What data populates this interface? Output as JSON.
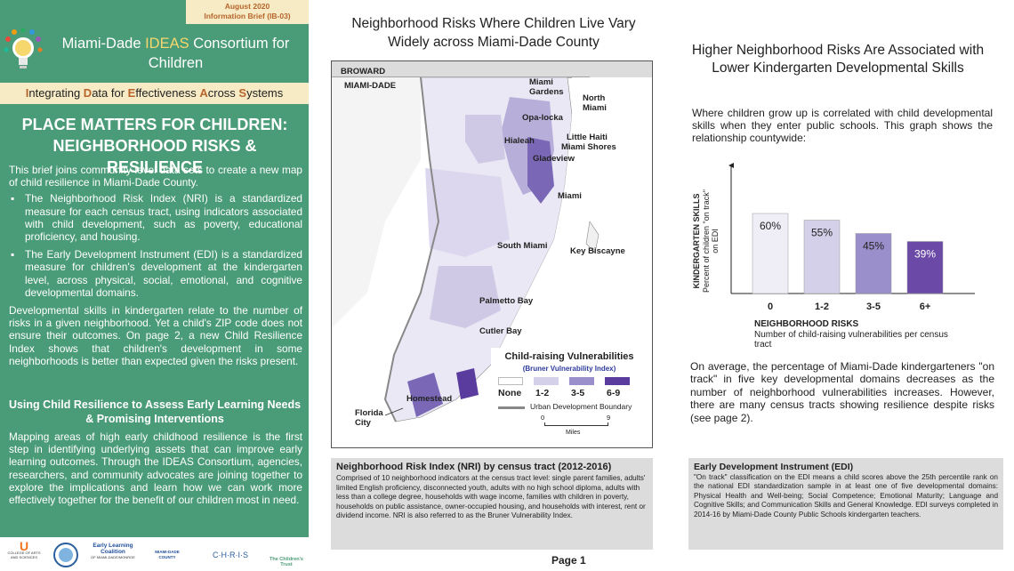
{
  "brief": {
    "date": "August 2020",
    "label": "Information Brief (IB-03)"
  },
  "header": {
    "consortium_pre": "Miami-Dade ",
    "consortium_ideas": "IDEAS",
    "consortium_post": " Consortium for Children",
    "ideas_expansion": [
      {
        "initial": "I",
        "rest": "ntegrating "
      },
      {
        "initial": "D",
        "rest": "ata for "
      },
      {
        "initial": "E",
        "rest": "ffectiveness "
      },
      {
        "initial": "A",
        "rest": "cross "
      },
      {
        "initial": "S",
        "rest": "ystems"
      }
    ]
  },
  "left": {
    "title": "PLACE MATTERS FOR CHILDREN: NEIGHBORHOOD RISKS & RESILIENCE",
    "intro": "This brief joins community-level data sets to create a new map of child resilience in Miami-Dade County.",
    "bullets": [
      "The Neighborhood Risk Index (NRI) is a standardized measure for each census tract, using indicators associated with child development, such as poverty, educational proficiency, and housing.",
      "The Early Development Instrument (EDI) is a standardized measure for children's development at the kindergarten level, across physical, social, emotional, and cognitive developmental domains."
    ],
    "para2": "Developmental skills in kindergarten relate to the number of risks in a given neighborhood. Yet a child's ZIP code does not ensure their outcomes. On page 2, a new Child Resilience Index shows that children's development in some neighborhoods is better than expected given the risks present.",
    "subhead": "Using Child Resilience to Assess Early Learning Needs & Promising Interventions",
    "para3": "Mapping areas of high early childhood resilience is the first step in identifying underlying assets that can improve early learning outcomes. Through the IDEAS Consortium, agencies, researchers, and community advocates are joining together to explore the implications and learn how we can work more effectively together for the benefit of our children most in need."
  },
  "logos": [
    {
      "name": "U",
      "caption": "COLLEGE OF ARTS AND SCIENCES"
    },
    {
      "name": "seal",
      "caption": ""
    },
    {
      "name": "Early Learning Coalition",
      "caption": "OF MIAMI-DADE/MONROE"
    },
    {
      "name": "MIAMI-DADE COUNTY",
      "caption": ""
    },
    {
      "name": "C·H·R·I·S",
      "caption": ""
    },
    {
      "name": "The Children's Trust",
      "caption": ""
    }
  ],
  "map": {
    "title": "Neighborhood Risks Where Children Live Vary Widely across Miami-Dade County",
    "county_labels": [
      "BROWARD",
      "MIAMI-DADE"
    ],
    "places": [
      "Miami Gardens",
      "North Miami",
      "Opa-locka",
      "Hialeah",
      "Little Haiti",
      "Miami Shores",
      "Gladeview",
      "Miami",
      "South Miami",
      "Key Biscayne",
      "Palmetto Bay",
      "Cutler Bay",
      "Homestead",
      "Florida City"
    ],
    "legend_title": "Child-raising Vulnerabilities",
    "legend_subtitle": "(Bruner Vulnerability Index)",
    "legend_items": [
      {
        "label": "None",
        "color": "#ffffff"
      },
      {
        "label": "1-2",
        "color": "#d4d0ea"
      },
      {
        "label": "3-5",
        "color": "#9b8fcb"
      },
      {
        "label": "6-9",
        "color": "#5a3c9e"
      }
    ],
    "boundary_label": "Urban Development Boundary",
    "scale_min": "0",
    "scale_max": "9",
    "scale_unit": "Miles"
  },
  "nri": {
    "title": "Neighborhood Risk Index (NRI) by census tract (2012-2016)",
    "text": "Comprised of 10 neighborhood indicators at the census tract level: single parent families, adults' limited English proficiency, disconnected youth, adults with no high school diploma, adults with less than a college degree, households with wage income, families with children in poverty, households on public assistance, owner-occupied housing, and households with interest, rent or dividend income. NRI is also referred to as the Bruner Vulnerability Index."
  },
  "page": {
    "label": "Page 1"
  },
  "right": {
    "title": "Higher Neighborhood Risks Are Associated with Lower Kindergarten Developmental Skills",
    "intro": "Where children grow up is correlated with child developmental skills when they enter public schools. This graph shows the relationship countywide:",
    "body": "On average, the percentage of Miami-Dade kindergarteners \"on track\" in five key developmental domains decreases as the number of neighborhood vulnerabilities increases. However, there are many census tracts showing resilience despite risks (see page 2)."
  },
  "chart_data": {
    "type": "bar",
    "categories": [
      "0",
      "1-2",
      "3-5",
      "6+"
    ],
    "values": [
      60,
      55,
      45,
      39
    ],
    "data_labels": [
      "60%",
      "55%",
      "45%",
      "39%"
    ],
    "colors": [
      "#efeef6",
      "#d4d0ea",
      "#9b8fcb",
      "#6a4aa6"
    ],
    "ylabel_title": "KINDERGARTEN SKILLS",
    "ylabel_sub": "Percent of children \"on track\" on EDI",
    "xlabel_title": "NEIGHBORHOOD RISKS",
    "xlabel_sub": "Number of child-raising vulnerabilities per census tract",
    "ylim": [
      0,
      100
    ],
    "grid": false
  },
  "edi": {
    "title": "Early Development Instrument (EDI)",
    "text": "\"On track\" classification on the EDI means a child scores above the 25th percentile rank on the national EDI standardization sample in at least one of five developmental domains: Physical Health and Well-being; Social Competence; Emotional Maturity; Language and Cognitive Skills; and Communication Skills and General Knowledge. EDI surveys completed in 2014-16 by Miami-Dade County Public Schools kindergarten teachers."
  }
}
